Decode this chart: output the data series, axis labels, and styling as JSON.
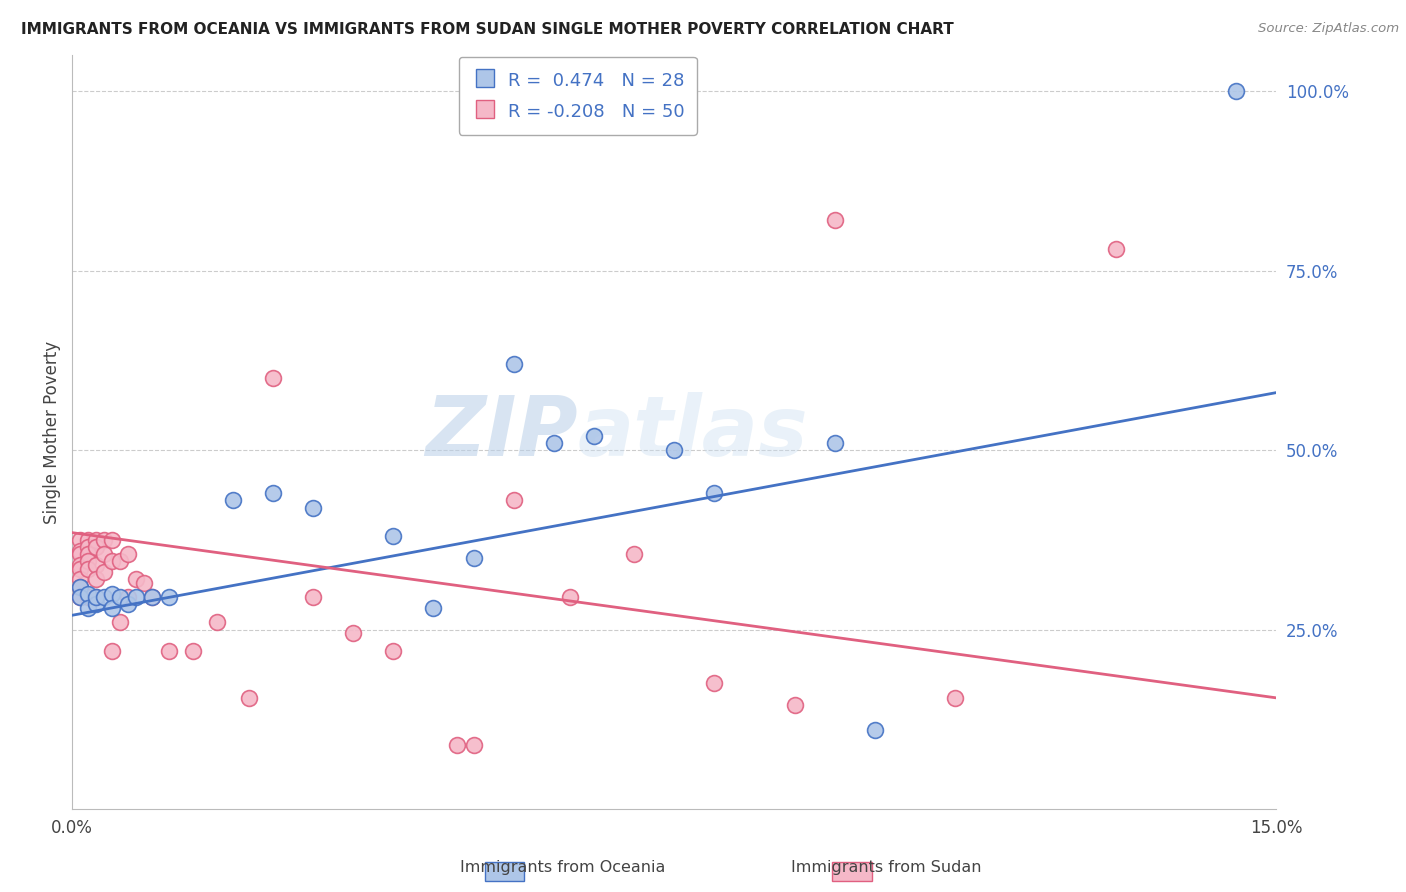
{
  "title": "IMMIGRANTS FROM OCEANIA VS IMMIGRANTS FROM SUDAN SINGLE MOTHER POVERTY CORRELATION CHART",
  "source": "Source: ZipAtlas.com",
  "ylabel": "Single Mother Poverty",
  "legend_label1": "Immigrants from Oceania",
  "legend_label2": "Immigrants from Sudan",
  "R1": 0.474,
  "N1": 28,
  "R2": -0.208,
  "N2": 50,
  "xlim": [
    0.0,
    0.15
  ],
  "ylim": [
    0.0,
    1.05
  ],
  "xtick_positions": [
    0.0,
    0.03,
    0.06,
    0.09,
    0.12,
    0.15
  ],
  "xtick_labels": [
    "0.0%",
    "",
    "",
    "",
    "",
    "15.0%"
  ],
  "yticks_right": [
    0.25,
    0.5,
    0.75,
    1.0
  ],
  "ytick_right_labels": [
    "25.0%",
    "50.0%",
    "75.0%",
    "100.0%"
  ],
  "color_oceania_fill": "#aec6e8",
  "color_oceania_edge": "#4472c4",
  "color_sudan_fill": "#f5b8c8",
  "color_sudan_edge": "#e06080",
  "color_line_oceania": "#4472c4",
  "color_line_sudan": "#e06080",
  "watermark": "ZIPatlas",
  "trendline_oceania": [
    0.27,
    0.58
  ],
  "trendline_sudan": [
    0.385,
    0.155
  ],
  "oceania_x": [
    0.001,
    0.001,
    0.002,
    0.002,
    0.003,
    0.003,
    0.004,
    0.005,
    0.005,
    0.006,
    0.007,
    0.008,
    0.01,
    0.012,
    0.02,
    0.025,
    0.03,
    0.04,
    0.045,
    0.05,
    0.055,
    0.06,
    0.065,
    0.075,
    0.08,
    0.095,
    0.1,
    0.145
  ],
  "oceania_y": [
    0.31,
    0.295,
    0.3,
    0.28,
    0.285,
    0.295,
    0.295,
    0.3,
    0.28,
    0.295,
    0.285,
    0.295,
    0.295,
    0.295,
    0.43,
    0.44,
    0.42,
    0.38,
    0.28,
    0.35,
    0.62,
    0.51,
    0.52,
    0.5,
    0.44,
    0.51,
    0.11,
    1.0
  ],
  "sudan_x": [
    0.001,
    0.001,
    0.001,
    0.001,
    0.001,
    0.001,
    0.001,
    0.001,
    0.002,
    0.002,
    0.002,
    0.002,
    0.002,
    0.002,
    0.003,
    0.003,
    0.003,
    0.003,
    0.003,
    0.004,
    0.004,
    0.004,
    0.005,
    0.005,
    0.005,
    0.006,
    0.006,
    0.007,
    0.007,
    0.008,
    0.009,
    0.01,
    0.012,
    0.015,
    0.018,
    0.022,
    0.025,
    0.03,
    0.035,
    0.04,
    0.048,
    0.05,
    0.055,
    0.062,
    0.07,
    0.08,
    0.09,
    0.095,
    0.11,
    0.13
  ],
  "sudan_y": [
    0.375,
    0.36,
    0.355,
    0.34,
    0.335,
    0.32,
    0.31,
    0.295,
    0.375,
    0.365,
    0.355,
    0.345,
    0.335,
    0.295,
    0.375,
    0.365,
    0.34,
    0.32,
    0.295,
    0.375,
    0.355,
    0.33,
    0.375,
    0.345,
    0.22,
    0.345,
    0.26,
    0.355,
    0.295,
    0.32,
    0.315,
    0.295,
    0.22,
    0.22,
    0.26,
    0.155,
    0.6,
    0.295,
    0.245,
    0.22,
    0.09,
    0.09,
    0.43,
    0.295,
    0.355,
    0.175,
    0.145,
    0.82,
    0.155,
    0.78
  ]
}
